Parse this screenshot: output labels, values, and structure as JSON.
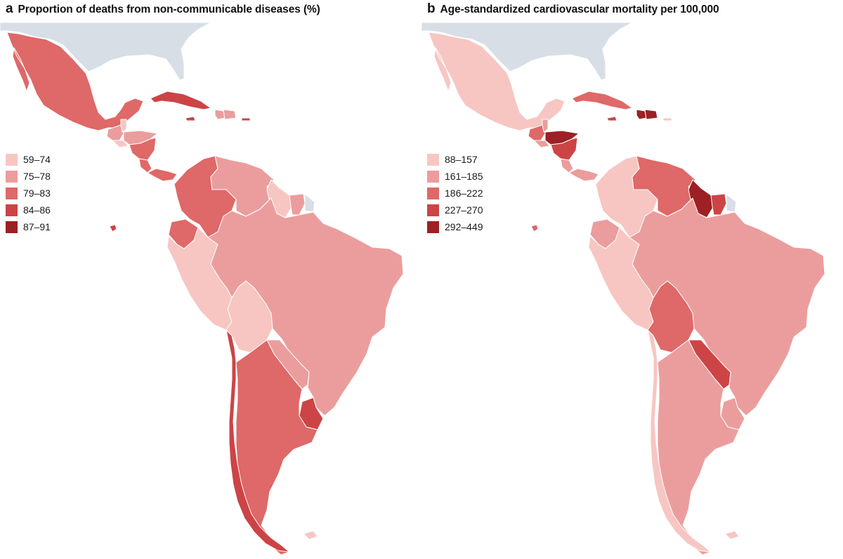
{
  "panels": [
    {
      "letter": "a",
      "title": "Proportion of deaths from non-communicable diseases (%)",
      "legend": [
        {
          "label": "59–74",
          "color": "#f7c6c2"
        },
        {
          "label": "75–78",
          "color": "#eb9d9d"
        },
        {
          "label": "79–83",
          "color": "#df6868"
        },
        {
          "label": "84–86",
          "color": "#cc4446"
        },
        {
          "label": "87–91",
          "color": "#9c2024"
        }
      ],
      "regions": {
        "mexico": 2,
        "guatemala": 1,
        "belize": 0,
        "honduras": 1,
        "el-salvador": 0,
        "nicaragua": 2,
        "costa-rica": 2,
        "panama": 2,
        "cuba": 3,
        "jamaica": 3,
        "haiti": 1,
        "dominican-republic": 1,
        "puerto-rico": 3,
        "colombia": 2,
        "venezuela": 1,
        "guyana": 0,
        "suriname": 1,
        "ecuador": 2,
        "peru": 0,
        "bolivia": 0,
        "brazil": 1,
        "paraguay": 1,
        "chile": 3,
        "argentina": 2,
        "uruguay": 3,
        "galapagos": 3
      }
    },
    {
      "letter": "b",
      "title": "Age-standardized cardiovascular mortality per 100,000",
      "legend": [
        {
          "label": "88–157",
          "color": "#f7c6c2"
        },
        {
          "label": "161–185",
          "color": "#eb9d9d"
        },
        {
          "label": "186–222",
          "color": "#df6868"
        },
        {
          "label": "227–270",
          "color": "#cc4446"
        },
        {
          "label": "292–449",
          "color": "#9c2024"
        }
      ],
      "regions": {
        "mexico": 0,
        "guatemala": 2,
        "belize": 1,
        "honduras": 4,
        "el-salvador": 1,
        "nicaragua": 3,
        "costa-rica": 1,
        "panama": 1,
        "cuba": 2,
        "jamaica": 3,
        "haiti": 4,
        "dominican-republic": 4,
        "puerto-rico": 0,
        "colombia": 0,
        "venezuela": 2,
        "guyana": 4,
        "suriname": 3,
        "ecuador": 1,
        "peru": 0,
        "bolivia": 2,
        "brazil": 1,
        "paraguay": 3,
        "chile": 0,
        "argentina": 1,
        "uruguay": 1,
        "galapagos": 2
      }
    }
  ],
  "no_data_color": "#d8dee6"
}
